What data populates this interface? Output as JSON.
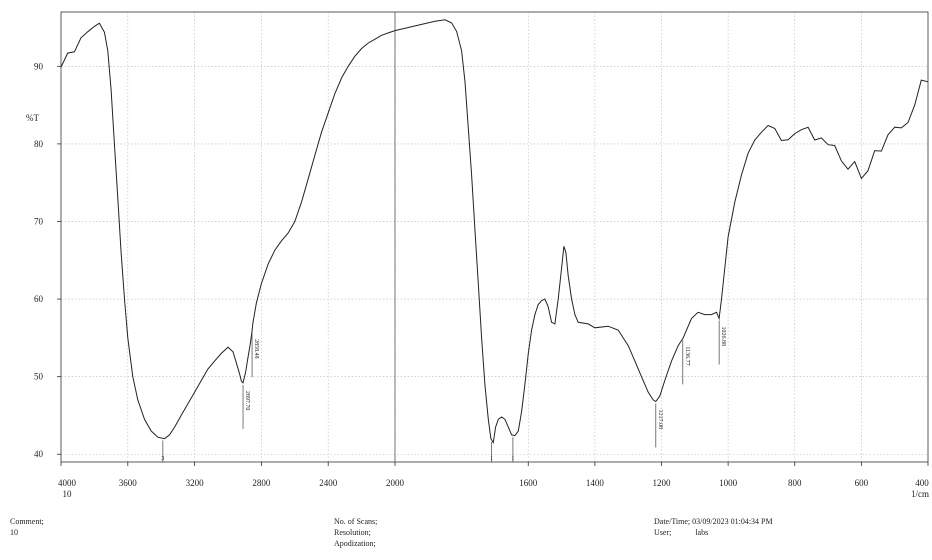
{
  "chart_data": {
    "type": "line",
    "ylabel": "%T",
    "x_unit": "1/cm",
    "x_axis_extra_label": "10",
    "xlim": [
      4000,
      400
    ],
    "ylim": [
      39,
      97
    ],
    "x_ticks": [
      4000,
      3600,
      3200,
      2800,
      2400,
      2000,
      1600,
      1400,
      1200,
      1000,
      800,
      600,
      400
    ],
    "y_ticks": [
      40,
      50,
      60,
      70,
      80,
      90
    ],
    "grid": true,
    "series": [
      {
        "points": [
          [
            4000,
            90.5
          ],
          [
            3960,
            91.2
          ],
          [
            3920,
            92.4
          ],
          [
            3880,
            93.6
          ],
          [
            3840,
            94.6
          ],
          [
            3800,
            95.2
          ],
          [
            3770,
            95.4
          ],
          [
            3740,
            94.8
          ],
          [
            3720,
            92.0
          ],
          [
            3700,
            87.0
          ],
          [
            3680,
            80.0
          ],
          [
            3660,
            73.0
          ],
          [
            3640,
            66.0
          ],
          [
            3620,
            60.0
          ],
          [
            3600,
            55.0
          ],
          [
            3570,
            50.0
          ],
          [
            3540,
            47.0
          ],
          [
            3500,
            44.5
          ],
          [
            3460,
            43.0
          ],
          [
            3420,
            42.2
          ],
          [
            3380,
            42.0
          ],
          [
            3350,
            42.5
          ],
          [
            3320,
            43.5
          ],
          [
            3280,
            45.0
          ],
          [
            3240,
            46.5
          ],
          [
            3200,
            48.0
          ],
          [
            3160,
            49.5
          ],
          [
            3120,
            51.0
          ],
          [
            3080,
            52.0
          ],
          [
            3040,
            53.0
          ],
          [
            3000,
            53.8
          ],
          [
            2970,
            53.2
          ],
          [
            2950,
            51.8
          ],
          [
            2930,
            50.3
          ],
          [
            2920,
            49.4
          ],
          [
            2910,
            49.2
          ],
          [
            2895,
            50.5
          ],
          [
            2880,
            52.5
          ],
          [
            2868,
            54.0
          ],
          [
            2858,
            55.5
          ],
          [
            2850,
            57.0
          ],
          [
            2830,
            59.5
          ],
          [
            2800,
            62.0
          ],
          [
            2760,
            64.5
          ],
          [
            2720,
            66.3
          ],
          [
            2680,
            67.5
          ],
          [
            2640,
            68.5
          ],
          [
            2600,
            70.0
          ],
          [
            2560,
            72.5
          ],
          [
            2520,
            75.5
          ],
          [
            2480,
            78.5
          ],
          [
            2440,
            81.5
          ],
          [
            2400,
            84.0
          ],
          [
            2360,
            86.5
          ],
          [
            2320,
            88.5
          ],
          [
            2280,
            90.0
          ],
          [
            2240,
            91.3
          ],
          [
            2200,
            92.3
          ],
          [
            2160,
            93.0
          ],
          [
            2120,
            93.5
          ],
          [
            2080,
            94.0
          ],
          [
            2040,
            94.3
          ],
          [
            2000,
            94.6
          ],
          [
            1960,
            95.0
          ],
          [
            1920,
            95.4
          ],
          [
            1880,
            95.8
          ],
          [
            1850,
            96.0
          ],
          [
            1830,
            95.6
          ],
          [
            1815,
            94.5
          ],
          [
            1800,
            92.0
          ],
          [
            1790,
            88.0
          ],
          [
            1780,
            82.0
          ],
          [
            1770,
            76.0
          ],
          [
            1760,
            69.0
          ],
          [
            1750,
            62.0
          ],
          [
            1740,
            55.0
          ],
          [
            1730,
            49.0
          ],
          [
            1720,
            44.5
          ],
          [
            1712,
            42.0
          ],
          [
            1705,
            41.5
          ],
          [
            1698,
            43.5
          ],
          [
            1690,
            44.5
          ],
          [
            1680,
            44.8
          ],
          [
            1670,
            44.5
          ],
          [
            1660,
            43.5
          ],
          [
            1650,
            42.5
          ],
          [
            1640,
            42.4
          ],
          [
            1630,
            43.0
          ],
          [
            1620,
            45.5
          ],
          [
            1610,
            49.0
          ],
          [
            1600,
            53.0
          ],
          [
            1590,
            56.0
          ],
          [
            1580,
            58.0
          ],
          [
            1570,
            59.3
          ],
          [
            1560,
            59.8
          ],
          [
            1550,
            60.0
          ],
          [
            1540,
            59.0
          ],
          [
            1530,
            57.0
          ],
          [
            1520,
            56.8
          ],
          [
            1510,
            60.0
          ],
          [
            1500,
            64.0
          ],
          [
            1493,
            66.8
          ],
          [
            1487,
            66.0
          ],
          [
            1480,
            63.0
          ],
          [
            1470,
            60.0
          ],
          [
            1460,
            58.0
          ],
          [
            1450,
            57.0
          ],
          [
            1420,
            56.8
          ],
          [
            1400,
            56.3
          ],
          [
            1360,
            56.5
          ],
          [
            1330,
            56.0
          ],
          [
            1300,
            54.0
          ],
          [
            1280,
            52.0
          ],
          [
            1260,
            50.0
          ],
          [
            1240,
            48.0
          ],
          [
            1225,
            47.0
          ],
          [
            1217,
            46.8
          ],
          [
            1205,
            47.5
          ],
          [
            1190,
            49.5
          ],
          [
            1170,
            52.0
          ],
          [
            1150,
            54.0
          ],
          [
            1135,
            55.0
          ],
          [
            1125,
            56.0
          ],
          [
            1110,
            57.5
          ],
          [
            1090,
            58.3
          ],
          [
            1070,
            58.0
          ],
          [
            1050,
            58.0
          ],
          [
            1035,
            58.3
          ],
          [
            1027,
            57.5
          ],
          [
            1020,
            60.0
          ],
          [
            1010,
            64.0
          ],
          [
            1000,
            68.0
          ],
          [
            980,
            72.5
          ],
          [
            960,
            76.0
          ],
          [
            940,
            78.8
          ],
          [
            920,
            80.5
          ],
          [
            900,
            81.5
          ],
          [
            880,
            82.0
          ],
          [
            860,
            81.6
          ],
          [
            840,
            80.8
          ],
          [
            820,
            80.6
          ],
          [
            800,
            81.0
          ],
          [
            780,
            81.5
          ],
          [
            760,
            81.7
          ],
          [
            740,
            81.0
          ],
          [
            720,
            80.5
          ],
          [
            700,
            79.5
          ],
          [
            680,
            78.5
          ],
          [
            660,
            77.5
          ],
          [
            640,
            76.8
          ],
          [
            620,
            76.5
          ],
          [
            600,
            77.0
          ],
          [
            580,
            77.8
          ],
          [
            560,
            78.5
          ],
          [
            540,
            79.0
          ],
          [
            520,
            80.0
          ],
          [
            500,
            80.8
          ],
          [
            480,
            82.0
          ],
          [
            460,
            83.5
          ],
          [
            440,
            85.5
          ],
          [
            420,
            87.0
          ],
          [
            400,
            88.0
          ]
        ]
      }
    ],
    "peak_labels": [
      {
        "x": 3390,
        "label": "3"
      },
      {
        "x": 2910,
        "label": "2897.70"
      },
      {
        "x": 2856,
        "label": "2858.48"
      },
      {
        "x": 1710,
        "label": "1"
      },
      {
        "x": 1646,
        "label": "1"
      },
      {
        "x": 1217,
        "label": "1217.08"
      },
      {
        "x": 1136,
        "label": "1136.77"
      },
      {
        "x": 1027,
        "label": "1026.88"
      }
    ]
  },
  "footer": {
    "comment_label": "Comment;",
    "comment_value": "10",
    "scans_label": "No. of Scans;",
    "resolution_label": "Resolution;",
    "apodization_label": "Apodization;",
    "datetime_label": "Date/Time; 03/09/2023 01:04:34 PM",
    "user_label": "User;",
    "user_value": "labs"
  },
  "colors": {
    "line": "#222222",
    "grid": "#b8b8b8",
    "frame": "#333333",
    "center_line": "#555555"
  }
}
